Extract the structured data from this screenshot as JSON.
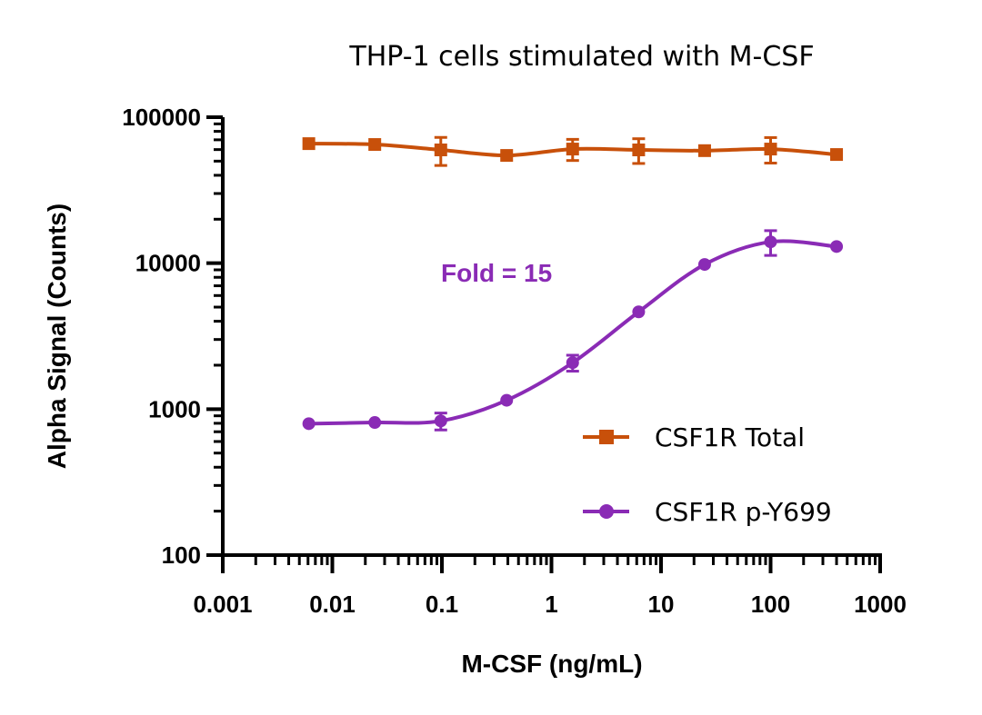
{
  "chart_data": {
    "type": "line",
    "title": "THP-1 cells stimulated with M-CSF",
    "xlabel": "M-CSF (ng/mL)",
    "ylabel": "Alpha Signal (Counts)",
    "xscale": "log",
    "yscale": "log",
    "xlim": [
      0.001,
      1000
    ],
    "ylim": [
      100,
      100000
    ],
    "xticks": [
      0.001,
      0.01,
      0.1,
      1,
      10,
      100,
      1000
    ],
    "xtick_labels": [
      "0.001",
      "0.01",
      "0.1",
      "1",
      "10",
      "100",
      "1000"
    ],
    "yticks": [
      100,
      1000,
      10000,
      100000
    ],
    "ytick_labels": [
      "100",
      "1000",
      "10000",
      "100000"
    ],
    "grid": false,
    "legend_position": "lower-right",
    "x": [
      0.0061,
      0.0244,
      0.0977,
      0.39,
      1.56,
      6.25,
      25,
      100,
      400
    ],
    "series": [
      {
        "name": "CSF1R Total",
        "marker": "square",
        "color": "#C8500A",
        "values": [
          65900,
          65000,
          59700,
          54700,
          60500,
          59700,
          59000,
          60500,
          55500
        ],
        "errors": [
          0,
          0,
          13000,
          0,
          10000,
          11500,
          0,
          12000,
          0
        ]
      },
      {
        "name": "CSF1R p-Y699",
        "marker": "circle",
        "color": "#8A2BB5",
        "values": [
          795,
          810,
          830,
          1150,
          2080,
          4640,
          9800,
          14000,
          13000
        ],
        "errors": [
          0,
          0,
          110,
          0,
          260,
          0,
          0,
          2700,
          0
        ]
      }
    ],
    "annotations": [
      {
        "text": "Fold = 15",
        "color": "#8A2BB5"
      }
    ]
  }
}
